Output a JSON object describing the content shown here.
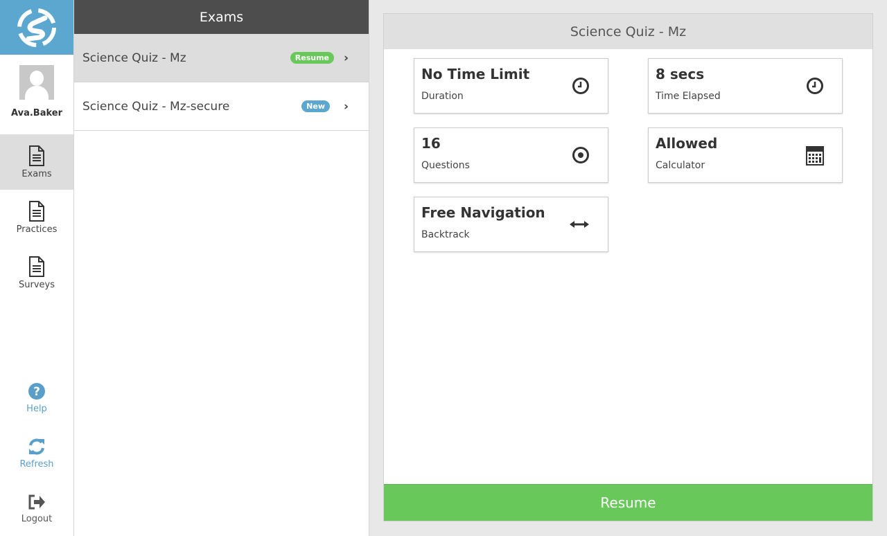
{
  "sidebar": {
    "username": "Ava.Baker",
    "items": [
      {
        "label": "Exams",
        "icon": "document-icon",
        "active": true
      },
      {
        "label": "Practices",
        "icon": "document-icon"
      },
      {
        "label": "Surveys",
        "icon": "document-icon"
      }
    ],
    "bottom": [
      {
        "label": "Help",
        "icon": "question-circle-icon"
      },
      {
        "label": "Refresh",
        "icon": "refresh-icon"
      },
      {
        "label": "Logout",
        "icon": "logout-icon"
      }
    ]
  },
  "list": {
    "title": "Exams",
    "items": [
      {
        "title": "Science Quiz - Mz",
        "badge": "Resume",
        "badge_color": "#68c95a",
        "active": true
      },
      {
        "title": "Science Quiz - Mz-secure",
        "badge": "New",
        "badge_color": "#5ba7cf"
      }
    ]
  },
  "detail": {
    "title": "Science Quiz - Mz",
    "cards": [
      {
        "value": "No Time Limit",
        "label": "Duration",
        "icon": "clock-icon"
      },
      {
        "value": "8 secs",
        "label": "Time Elapsed",
        "icon": "clock-icon"
      },
      {
        "value": "16",
        "label": "Questions",
        "icon": "dot-circle-icon"
      },
      {
        "value": "Allowed",
        "label": "Calculator",
        "icon": "calculator-icon"
      },
      {
        "value": "Free Navigation",
        "label": "Backtrack",
        "icon": "arrows-horizontal-icon"
      }
    ],
    "button": "Resume"
  },
  "colors": {
    "brand": "#5ba7cf",
    "success": "#68c95a",
    "header": "#4d4d4d"
  }
}
